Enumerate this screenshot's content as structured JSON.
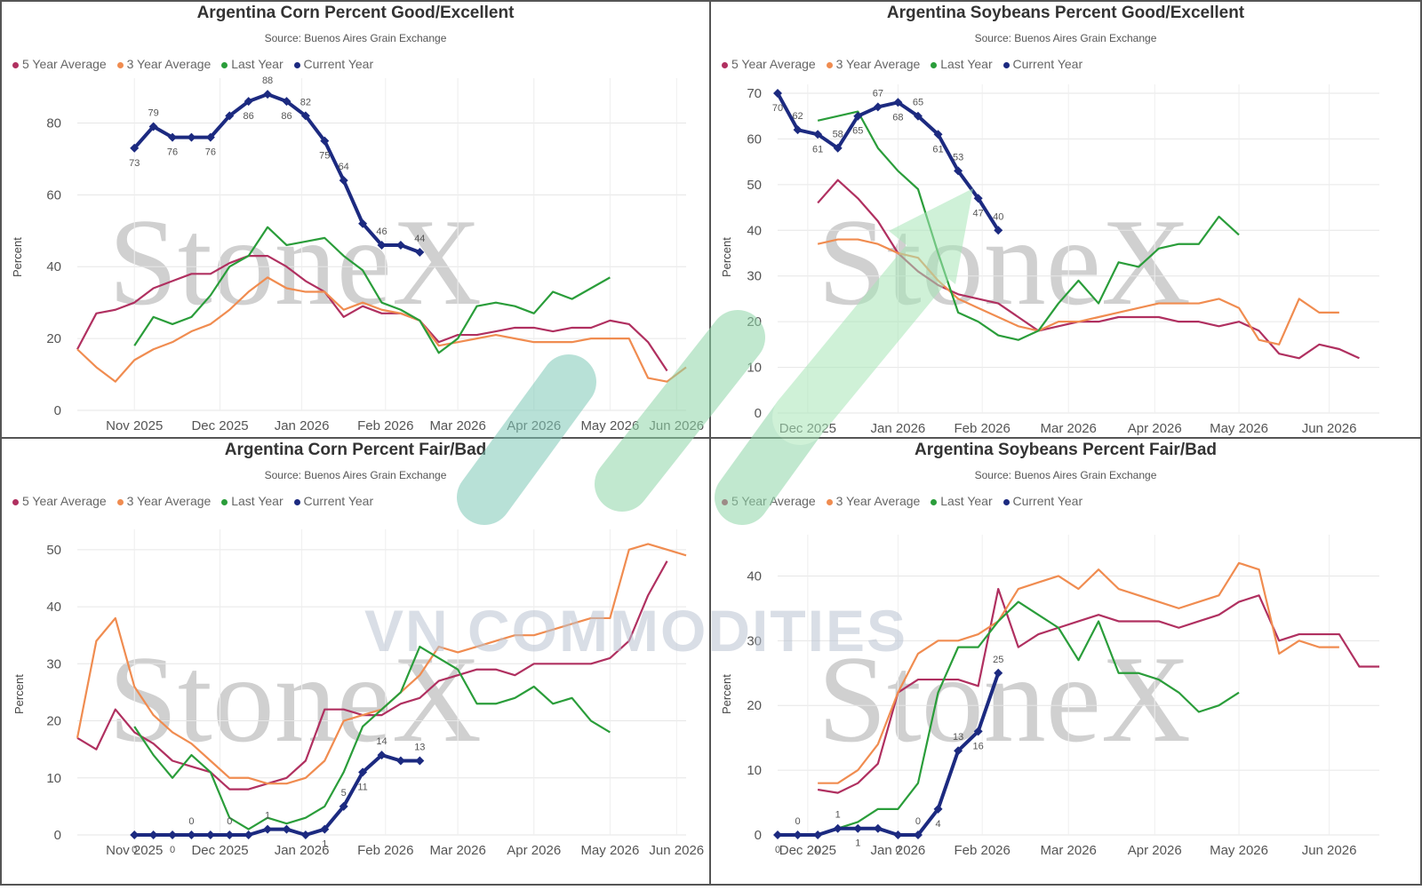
{
  "watermark": {
    "brand": "StoneX",
    "overlay": "VN COMMODITIES"
  },
  "legend_labels": [
    "5 Year Average",
    "3 Year Average",
    "Last Year",
    "Current Year"
  ],
  "colors": {
    "five_year": "#b03060",
    "three_year": "#f08c50",
    "last_year": "#2a9d3a",
    "current_year": "#1c2a80"
  },
  "chart_data": [
    {
      "type": "line",
      "title": "Argentina Corn Percent Good/Excellent",
      "subtitle": "Source: Buenos Aires Grain Exchange",
      "ylabel": "Percent",
      "ylim": [
        0,
        90
      ],
      "yticks": [
        0,
        20,
        40,
        60,
        80
      ],
      "xlim": [
        0,
        32
      ],
      "xticks": [
        {
          "x": 3,
          "label": "Nov 2025"
        },
        {
          "x": 7.5,
          "label": "Dec 2025"
        },
        {
          "x": 11.8,
          "label": "Jan 2026"
        },
        {
          "x": 16.2,
          "label": "Feb 2026"
        },
        {
          "x": 20,
          "label": "Mar 2026"
        },
        {
          "x": 24,
          "label": "Apr 2026"
        },
        {
          "x": 28,
          "label": "May 2026"
        },
        {
          "x": 31.5,
          "label": "Jun 2026"
        }
      ],
      "series": [
        {
          "name": "5 Year Average",
          "x": [
            0,
            1,
            2,
            3,
            4,
            5,
            6,
            7,
            8,
            9,
            10,
            11,
            12,
            13,
            14,
            15,
            16,
            17,
            18,
            19,
            20,
            21,
            22,
            23,
            24,
            25,
            26,
            27,
            28,
            29,
            30,
            31
          ],
          "values": [
            17,
            27,
            28,
            30,
            34,
            36,
            38,
            38,
            41,
            43,
            43,
            40,
            36,
            33,
            26,
            29,
            27,
            27,
            25,
            19,
            21,
            21,
            22,
            23,
            23,
            22,
            23,
            23,
            25,
            24,
            19,
            11
          ]
        },
        {
          "name": "3 Year Average",
          "x": [
            0,
            1,
            2,
            3,
            4,
            5,
            6,
            7,
            8,
            9,
            10,
            11,
            12,
            13,
            14,
            15,
            16,
            17,
            18,
            19,
            20,
            21,
            22,
            23,
            24,
            25,
            26,
            27,
            28,
            29,
            30,
            31,
            32
          ],
          "values": [
            17,
            12,
            8,
            14,
            17,
            19,
            22,
            24,
            28,
            33,
            37,
            34,
            33,
            33,
            28,
            30,
            28,
            27,
            25,
            18,
            19,
            20,
            21,
            20,
            19,
            19,
            19,
            20,
            20,
            20,
            9,
            8,
            12
          ]
        },
        {
          "name": "Last Year",
          "x": [
            3,
            4,
            5,
            6,
            7,
            8,
            9,
            10,
            11,
            12,
            13,
            14,
            15,
            16,
            17,
            18,
            19,
            20,
            21,
            22,
            23,
            24,
            25,
            26,
            27,
            28
          ],
          "values": [
            18,
            26,
            24,
            26,
            32,
            40,
            43,
            51,
            46,
            47,
            48,
            43,
            39,
            30,
            28,
            25,
            16,
            20,
            29,
            30,
            29,
            27,
            33,
            31,
            34,
            37
          ]
        },
        {
          "name": "Current Year",
          "x": [
            3,
            4,
            5,
            6,
            7,
            8,
            9,
            10,
            11,
            12,
            13,
            14,
            15,
            16,
            17,
            18
          ],
          "values": [
            73,
            79,
            76,
            76,
            76,
            82,
            86,
            88,
            86,
            82,
            75,
            64,
            52,
            46,
            46,
            44
          ],
          "labels": [
            "73",
            "79",
            "76",
            "",
            "76",
            "",
            "86",
            "88",
            "86",
            "82",
            "75",
            "64",
            "",
            "46",
            "",
            "44"
          ]
        }
      ]
    },
    {
      "type": "line",
      "title": "Argentina Soybeans Percent Good/Excellent",
      "subtitle": "Source: Buenos Aires Grain Exchange",
      "ylabel": "Percent",
      "ylim": [
        0,
        70
      ],
      "yticks": [
        0,
        10,
        20,
        30,
        40,
        50,
        60,
        70
      ],
      "xlim": [
        0,
        30
      ],
      "xticks": [
        {
          "x": 1.5,
          "label": "Dec 2025"
        },
        {
          "x": 6,
          "label": "Jan 2026"
        },
        {
          "x": 10.2,
          "label": "Feb 2026"
        },
        {
          "x": 14.5,
          "label": "Mar 2026"
        },
        {
          "x": 18.8,
          "label": "Apr 2026"
        },
        {
          "x": 23,
          "label": "May 2026"
        },
        {
          "x": 27.5,
          "label": "Jun 2026"
        }
      ],
      "series": [
        {
          "name": "5 Year Average",
          "x": [
            2,
            3,
            4,
            5,
            6,
            7,
            8,
            9,
            10,
            11,
            12,
            13,
            14,
            15,
            16,
            17,
            18,
            19,
            20,
            21,
            22,
            23,
            24,
            25,
            26,
            27,
            28,
            29
          ],
          "values": [
            46,
            51,
            47,
            42,
            35,
            31,
            28,
            26,
            25,
            24,
            21,
            18,
            19,
            20,
            20,
            21,
            21,
            21,
            20,
            20,
            19,
            20,
            18,
            13,
            12,
            15,
            14,
            12
          ]
        },
        {
          "name": "3 Year Average",
          "x": [
            2,
            3,
            4,
            5,
            6,
            7,
            8,
            9,
            10,
            11,
            12,
            13,
            14,
            15,
            16,
            17,
            18,
            19,
            20,
            21,
            22,
            23,
            24,
            25,
            26,
            27,
            28
          ],
          "values": [
            37,
            38,
            38,
            37,
            35,
            34,
            29,
            25,
            23,
            21,
            19,
            18,
            20,
            20,
            21,
            22,
            23,
            24,
            24,
            24,
            25,
            23,
            16,
            15,
            25,
            22,
            22
          ]
        },
        {
          "name": "Last Year",
          "x": [
            2,
            3,
            4,
            5,
            6,
            7,
            8,
            9,
            10,
            11,
            12,
            13,
            14,
            15,
            16,
            17,
            18,
            19,
            20,
            21,
            22,
            23
          ],
          "values": [
            64,
            65,
            66,
            58,
            53,
            49,
            35,
            22,
            20,
            17,
            16,
            18,
            24,
            29,
            24,
            33,
            32,
            36,
            37,
            37,
            43,
            39
          ]
        },
        {
          "name": "Current Year",
          "x": [
            0,
            1,
            2,
            3,
            4,
            5,
            6,
            7,
            8,
            9,
            10,
            11
          ],
          "values": [
            70,
            62,
            61,
            58,
            65,
            67,
            68,
            65,
            61,
            53,
            47,
            40
          ],
          "labels": [
            "70",
            "62",
            "61",
            "58",
            "65",
            "67",
            "68",
            "65",
            "61",
            "53",
            "47",
            "40"
          ]
        }
      ]
    },
    {
      "type": "line",
      "title": "Argentina Corn Percent Fair/Bad",
      "subtitle": "Source: Buenos Aires Grain Exchange",
      "ylabel": "Percent",
      "ylim": [
        0,
        52
      ],
      "yticks": [
        0,
        10,
        20,
        30,
        40,
        50
      ],
      "xlim": [
        0,
        32
      ],
      "xticks": [
        {
          "x": 3,
          "label": "Nov 2025"
        },
        {
          "x": 7.5,
          "label": "Dec 2025"
        },
        {
          "x": 11.8,
          "label": "Jan 2026"
        },
        {
          "x": 16.2,
          "label": "Feb 2026"
        },
        {
          "x": 20,
          "label": "Mar 2026"
        },
        {
          "x": 24,
          "label": "Apr 2026"
        },
        {
          "x": 28,
          "label": "May 2026"
        },
        {
          "x": 31.5,
          "label": "Jun 2026"
        }
      ],
      "series": [
        {
          "name": "5 Year Average",
          "x": [
            0,
            1,
            2,
            3,
            4,
            5,
            6,
            7,
            8,
            9,
            10,
            11,
            12,
            13,
            14,
            15,
            16,
            17,
            18,
            19,
            20,
            21,
            22,
            23,
            24,
            25,
            26,
            27,
            28,
            29,
            30,
            31
          ],
          "values": [
            17,
            15,
            22,
            18,
            16,
            13,
            12,
            11,
            8,
            8,
            9,
            10,
            13,
            22,
            22,
            21,
            21,
            23,
            24,
            27,
            28,
            29,
            29,
            28,
            30,
            30,
            30,
            30,
            31,
            34,
            42,
            48
          ]
        },
        {
          "name": "3 Year Average",
          "x": [
            0,
            1,
            2,
            3,
            4,
            5,
            6,
            7,
            8,
            9,
            10,
            11,
            12,
            13,
            14,
            15,
            16,
            17,
            18,
            19,
            20,
            21,
            22,
            23,
            24,
            25,
            26,
            27,
            28,
            29,
            30,
            31,
            32
          ],
          "values": [
            17,
            34,
            38,
            26,
            21,
            18,
            16,
            13,
            10,
            10,
            9,
            9,
            10,
            13,
            20,
            21,
            22,
            25,
            28,
            33,
            32,
            33,
            34,
            35,
            35,
            36,
            37,
            38,
            38,
            50,
            51,
            50,
            49
          ]
        },
        {
          "name": "Last Year",
          "x": [
            3,
            4,
            5,
            6,
            7,
            8,
            9,
            10,
            11,
            12,
            13,
            14,
            15,
            16,
            17,
            18,
            19,
            20,
            21,
            22,
            23,
            24,
            25,
            26,
            27,
            28
          ],
          "values": [
            19,
            14,
            10,
            14,
            11,
            3,
            1,
            3,
            2,
            3,
            5,
            11,
            19,
            22,
            25,
            33,
            31,
            29,
            23,
            23,
            24,
            26,
            23,
            24,
            20,
            18
          ]
        },
        {
          "name": "Current Year",
          "x": [
            3,
            4,
            5,
            6,
            7,
            8,
            9,
            10,
            11,
            12,
            13,
            14,
            15,
            16,
            17,
            18
          ],
          "values": [
            0,
            0,
            0,
            0,
            0,
            0,
            0,
            1,
            1,
            0,
            1,
            5,
            11,
            14,
            13,
            13
          ],
          "labels": [
            "0",
            "",
            "0",
            "0",
            "",
            "0",
            "",
            "1",
            "",
            "",
            "1",
            "5",
            "11",
            "14",
            "",
            "13"
          ]
        }
      ]
    },
    {
      "type": "line",
      "title": "Argentina Soybeans Percent Fair/Bad",
      "subtitle": "Source: Buenos Aires Grain Exchange",
      "ylabel": "Percent",
      "ylim": [
        0,
        45
      ],
      "yticks": [
        0,
        10,
        20,
        30,
        40
      ],
      "xlim": [
        0,
        30
      ],
      "xticks": [
        {
          "x": 1.5,
          "label": "Dec 2025"
        },
        {
          "x": 6,
          "label": "Jan 2026"
        },
        {
          "x": 10.2,
          "label": "Feb 2026"
        },
        {
          "x": 14.5,
          "label": "Mar 2026"
        },
        {
          "x": 18.8,
          "label": "Apr 2026"
        },
        {
          "x": 23,
          "label": "May 2026"
        },
        {
          "x": 27.5,
          "label": "Jun 2026"
        }
      ],
      "series": [
        {
          "name": "5 Year Average",
          "x": [
            2,
            3,
            4,
            5,
            6,
            7,
            8,
            9,
            10,
            11,
            12,
            13,
            14,
            15,
            16,
            17,
            18,
            19,
            20,
            21,
            22,
            23,
            24,
            25,
            26,
            27,
            28,
            29,
            30
          ],
          "values": [
            7,
            6.5,
            8,
            11,
            22,
            24,
            24,
            24,
            23,
            38,
            29,
            31,
            32,
            33,
            34,
            33,
            33,
            33,
            32,
            33,
            34,
            36,
            37,
            30,
            31,
            31,
            31,
            26,
            26
          ]
        },
        {
          "name": "3 Year Average",
          "x": [
            2,
            3,
            4,
            5,
            6,
            7,
            8,
            9,
            10,
            11,
            12,
            13,
            14,
            15,
            16,
            17,
            18,
            19,
            20,
            21,
            22,
            23,
            24,
            25,
            26,
            27,
            28
          ],
          "values": [
            8,
            8,
            10,
            14,
            22,
            28,
            30,
            30,
            31,
            33,
            38,
            39,
            40,
            38,
            41,
            38,
            37,
            36,
            35,
            36,
            37,
            42,
            41,
            28,
            30,
            29,
            29
          ]
        },
        {
          "name": "Last Year",
          "x": [
            3,
            4,
            5,
            6,
            7,
            8,
            9,
            10,
            11,
            12,
            13,
            14,
            15,
            16,
            17,
            18,
            19,
            20,
            21,
            22,
            23
          ],
          "values": [
            1,
            2,
            4,
            4,
            8,
            22,
            29,
            29,
            33,
            36,
            34,
            32,
            27,
            33,
            25,
            25,
            24,
            22,
            19,
            20,
            22
          ]
        },
        {
          "name": "Current Year",
          "x": [
            0,
            1,
            2,
            3,
            4,
            5,
            6,
            7,
            8,
            9,
            10,
            11
          ],
          "values": [
            0,
            0,
            0,
            1,
            1,
            1,
            0,
            0,
            4,
            13,
            16,
            25
          ],
          "labels": [
            "0",
            "0",
            "0",
            "1",
            "1",
            "",
            "0",
            "0",
            "4",
            "13",
            "16",
            "25"
          ]
        }
      ]
    }
  ]
}
